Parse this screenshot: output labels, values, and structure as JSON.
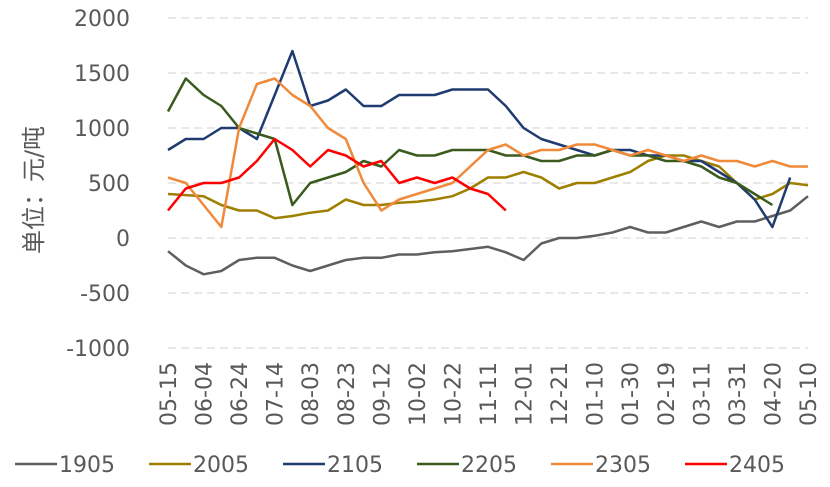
{
  "chart_data": {
    "type": "line",
    "y_label": "单位：元/吨",
    "categories": [
      "05-15",
      null,
      "06-04",
      null,
      "06-24",
      null,
      "07-14",
      null,
      "08-03",
      null,
      "08-23",
      null,
      "09-12",
      null,
      "10-02",
      null,
      "10-22",
      null,
      "11-11",
      null,
      "12-01",
      null,
      "12-21",
      null,
      "01-10",
      null,
      "01-30",
      null,
      "02-19",
      null,
      "03-11",
      null,
      "03-31",
      null,
      "04-20",
      null,
      "05-10"
    ],
    "ylim": [
      -1000,
      2000
    ],
    "yticks": [
      -1000,
      -500,
      0,
      500,
      1000,
      1500,
      2000
    ],
    "grid": true,
    "legend": "bottom",
    "series": [
      {
        "name": "1905",
        "color": "#5f5f5f",
        "values": [
          -120,
          -250,
          -330,
          -300,
          -200,
          -180,
          -180,
          -250,
          -300,
          -250,
          -200,
          -180,
          -180,
          -150,
          -150,
          -130,
          -120,
          -100,
          -80,
          -130,
          -200,
          -50,
          0,
          0,
          20,
          50,
          100,
          50,
          50,
          100,
          150,
          100,
          150,
          150,
          200,
          250,
          380
        ]
      },
      {
        "name": "2005",
        "color": "#9e7f00",
        "values": [
          400,
          390,
          380,
          300,
          250,
          250,
          180,
          200,
          230,
          250,
          350,
          300,
          300,
          320,
          330,
          350,
          380,
          450,
          550,
          550,
          600,
          550,
          450,
          500,
          500,
          550,
          600,
          700,
          750,
          750,
          700,
          650,
          500,
          350,
          400,
          500,
          480
        ]
      },
      {
        "name": "2105",
        "color": "#1f3b70",
        "values": [
          800,
          900,
          900,
          1000,
          1000,
          900,
          1300,
          1700,
          1200,
          1250,
          1350,
          1200,
          1200,
          1300,
          1300,
          1300,
          1350,
          1350,
          1350,
          1200,
          1000,
          900,
          850,
          800,
          750,
          800,
          800,
          750,
          750,
          700,
          700,
          600,
          500,
          350,
          100,
          550,
          null
        ]
      },
      {
        "name": "2205",
        "color": "#3a5a1e",
        "values": [
          1150,
          1450,
          1300,
          1200,
          1000,
          950,
          900,
          300,
          500,
          550,
          600,
          700,
          650,
          800,
          750,
          750,
          800,
          800,
          800,
          750,
          750,
          700,
          700,
          750,
          750,
          800,
          750,
          750,
          700,
          700,
          650,
          550,
          500,
          400,
          300,
          null,
          null
        ]
      },
      {
        "name": "2305",
        "color": "#f08a3a",
        "values": [
          550,
          500,
          300,
          100,
          1000,
          1400,
          1450,
          1300,
          1200,
          1000,
          900,
          500,
          250,
          350,
          400,
          450,
          500,
          650,
          800,
          850,
          750,
          800,
          800,
          850,
          850,
          800,
          750,
          800,
          750,
          700,
          750,
          700,
          700,
          650,
          700,
          650,
          650
        ]
      },
      {
        "name": "2405",
        "color": "#ff0000",
        "values": [
          250,
          450,
          500,
          500,
          550,
          700,
          900,
          800,
          650,
          800,
          750,
          650,
          700,
          500,
          550,
          500,
          550,
          450,
          400,
          250,
          null,
          null,
          null,
          null,
          null,
          null,
          null,
          null,
          null,
          null,
          null,
          null,
          null,
          null,
          null,
          null,
          null
        ]
      }
    ]
  }
}
